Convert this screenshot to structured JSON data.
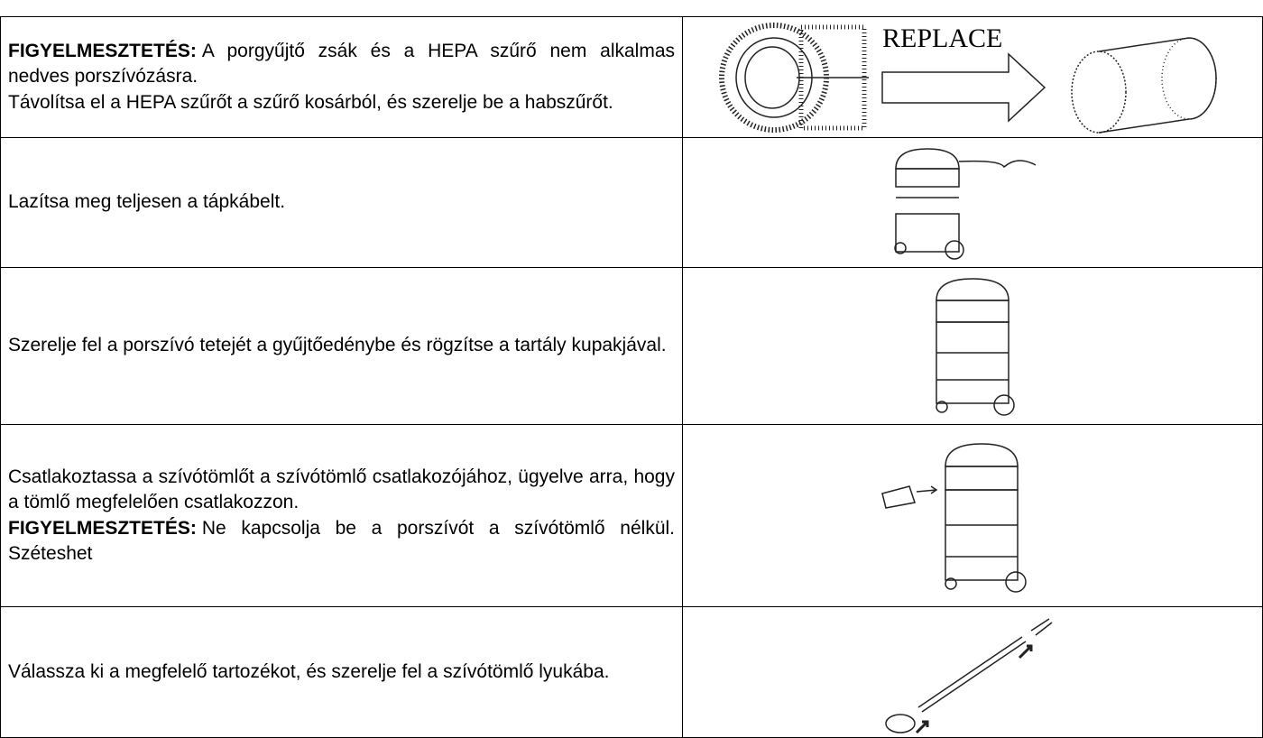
{
  "table": {
    "rows": [
      {
        "paragraphs": [
          {
            "label": "FIGYELMESZTETÉS:",
            "text": "A porgyűjtő zsák és a HEPA szűrő nem alkalmas nedves porszívózásra."
          },
          {
            "text": "Távolítsa el a HEPA szűrőt a szűrő kosárból, és szerelje be a habszűrőt."
          }
        ],
        "image_label": "REPLACE"
      },
      {
        "paragraphs": [
          {
            "text": "Lazítsa meg teljesen a tápkábelt."
          }
        ]
      },
      {
        "paragraphs": [
          {
            "text": "Szerelje fel a porszívó tetejét a gyűjtőedénybe és rögzítse a tartály kupakjával."
          }
        ]
      },
      {
        "paragraphs": [
          {
            "text": "Csatlakoztassa a szívótömlőt a szívótömlő csatlakozójához, ügyelve arra, hogy a tömlő megfelelően csatlakozzon."
          },
          {
            "label": "FIGYELMESZTETÉS:",
            "text": "Ne kapcsolja be a porszívót a szívótömlő nélkül. Széteshet"
          }
        ]
      },
      {
        "paragraphs": [
          {
            "text": "Válassza ki a megfelelő tartozékot, és szerelje fel a szívótömlő lyukába."
          }
        ]
      }
    ]
  }
}
